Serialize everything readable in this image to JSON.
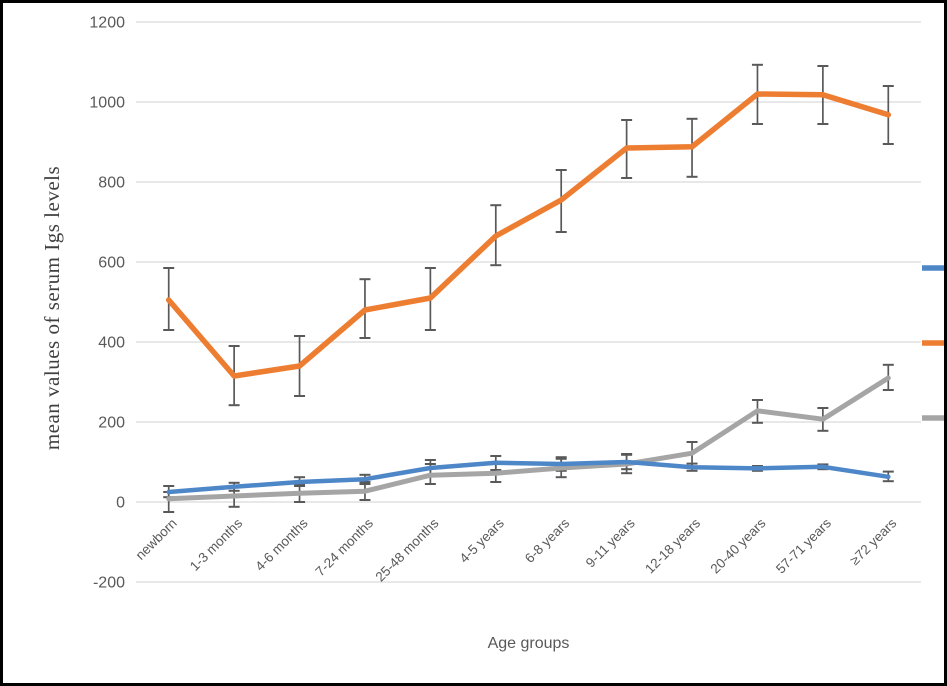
{
  "chart_data": {
    "type": "line",
    "title": "",
    "xlabel": "Age groups",
    "ylabel": "mean values of serum Igs levels",
    "ylim": [
      -200,
      1200
    ],
    "yticks": [
      1200,
      1000,
      800,
      600,
      400,
      200,
      0,
      -200
    ],
    "grid": true,
    "legend_position": "right (cropped, markers only visible)",
    "error_bar_color": "#595959",
    "gridline_color": "#d9d9d9",
    "categories": [
      "newborn",
      "1-3 months",
      "4-6 months",
      "7-24 months",
      "25-48 months",
      "4-5 years",
      "6-8 years",
      "9-11 years",
      "12-18 years",
      "20-40 years",
      "57-71 years",
      "≥72 years"
    ],
    "series": [
      {
        "name": "blue-series",
        "color": "#4e87c8",
        "values": [
          25,
          38,
          50,
          57,
          85,
          98,
          95,
          100,
          87,
          84,
          88,
          63
        ],
        "err_high": [
          40,
          48,
          62,
          68,
          105,
          115,
          112,
          120,
          96,
          90,
          94,
          76
        ],
        "err_low": [
          12,
          28,
          40,
          45,
          65,
          80,
          78,
          82,
          78,
          78,
          82,
          52
        ]
      },
      {
        "name": "orange-series",
        "color": "#ed7d31",
        "values": [
          505,
          315,
          340,
          480,
          510,
          665,
          755,
          885,
          888,
          1020,
          1018,
          968
        ],
        "err_high": [
          585,
          390,
          415,
          557,
          585,
          742,
          830,
          955,
          958,
          1093,
          1090,
          1040
        ],
        "err_low": [
          430,
          242,
          265,
          410,
          430,
          592,
          675,
          810,
          813,
          945,
          945,
          895
        ]
      },
      {
        "name": "gray-series",
        "color": "#a5a5a5",
        "values": [
          8,
          15,
          22,
          27,
          67,
          72,
          85,
          95,
          122,
          228,
          207,
          310
        ],
        "err_high": [
          25,
          40,
          45,
          50,
          95,
          95,
          108,
          118,
          150,
          255,
          235,
          343
        ],
        "err_low": [
          -25,
          -12,
          0,
          5,
          45,
          50,
          62,
          72,
          85,
          198,
          178,
          280
        ]
      }
    ]
  }
}
